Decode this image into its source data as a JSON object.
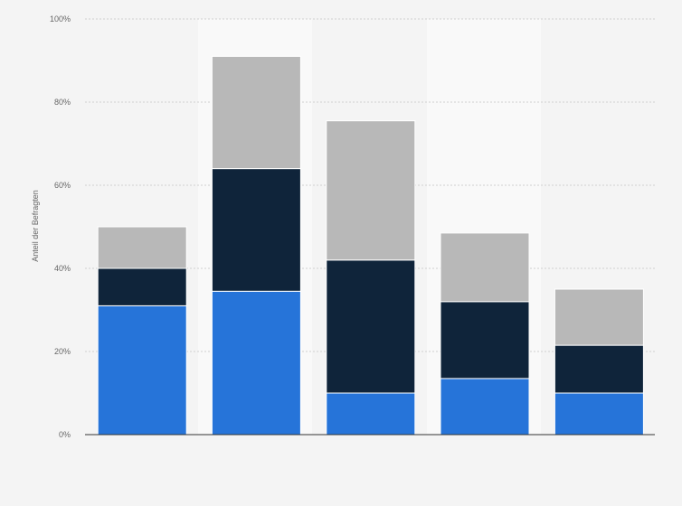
{
  "chart_data": {
    "type": "bar",
    "stacked": true,
    "categories": [
      "",
      "",
      "",
      "",
      ""
    ],
    "series": [
      {
        "values": [
          31,
          34.5,
          10,
          13.5,
          10
        ],
        "color": "#2674d9"
      },
      {
        "values": [
          9,
          29.5,
          32,
          18.5,
          11.5
        ],
        "color": "#0f243a"
      },
      {
        "values": [
          10,
          27,
          33.5,
          16.5,
          13.5
        ],
        "color": "#b8b8b8"
      }
    ],
    "title": "",
    "xlabel": "",
    "ylabel": "Anteil der Befragten",
    "ylim": [
      0,
      100
    ],
    "yticks": [
      0,
      20,
      40,
      60,
      80,
      100
    ],
    "ytick_labels": [
      "0%",
      "20%",
      "40%",
      "60%",
      "80%",
      "100%"
    ],
    "grid": true,
    "legend": "none"
  }
}
